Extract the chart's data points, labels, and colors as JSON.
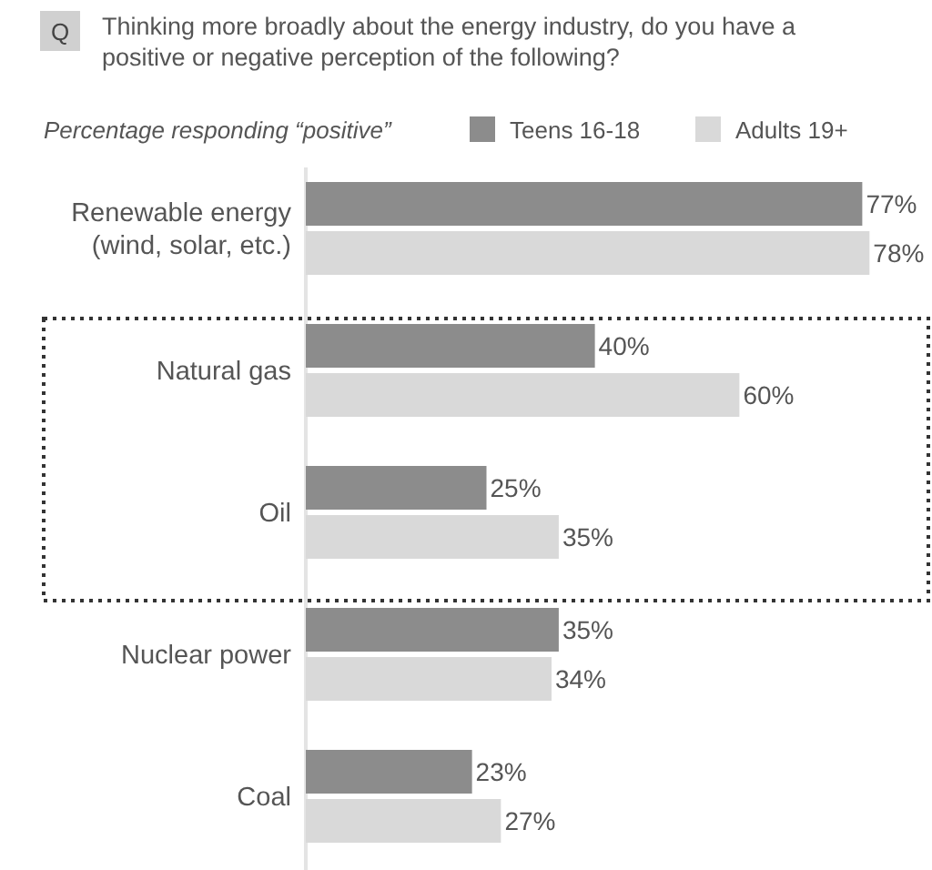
{
  "chart_data": {
    "type": "bar",
    "orientation": "horizontal",
    "title": "Thinking more broadly about the energy industry, do you have a positive or negative perception of the following?",
    "subtitle": "Percentage responding “positive”",
    "annotations": [
      "Q"
    ],
    "legend": "top",
    "categories": [
      "Renewable energy (wind, solar, etc.)",
      "Natural gas",
      "Oil",
      "Nuclear power",
      "Coal"
    ],
    "series": [
      {
        "name": "Teens 16-18",
        "color": "#8c8c8c",
        "values": [
          77,
          40,
          25,
          35,
          23
        ],
        "value_labels": [
          "77%",
          "40%",
          "25%",
          "35%",
          "23%"
        ]
      },
      {
        "name": "Adults 19+",
        "color": "#d9d9d9",
        "values": [
          78,
          60,
          35,
          34,
          27
        ],
        "value_labels": [
          "78%",
          "60%",
          "35%",
          "34%",
          "27%"
        ]
      }
    ]
  }
}
